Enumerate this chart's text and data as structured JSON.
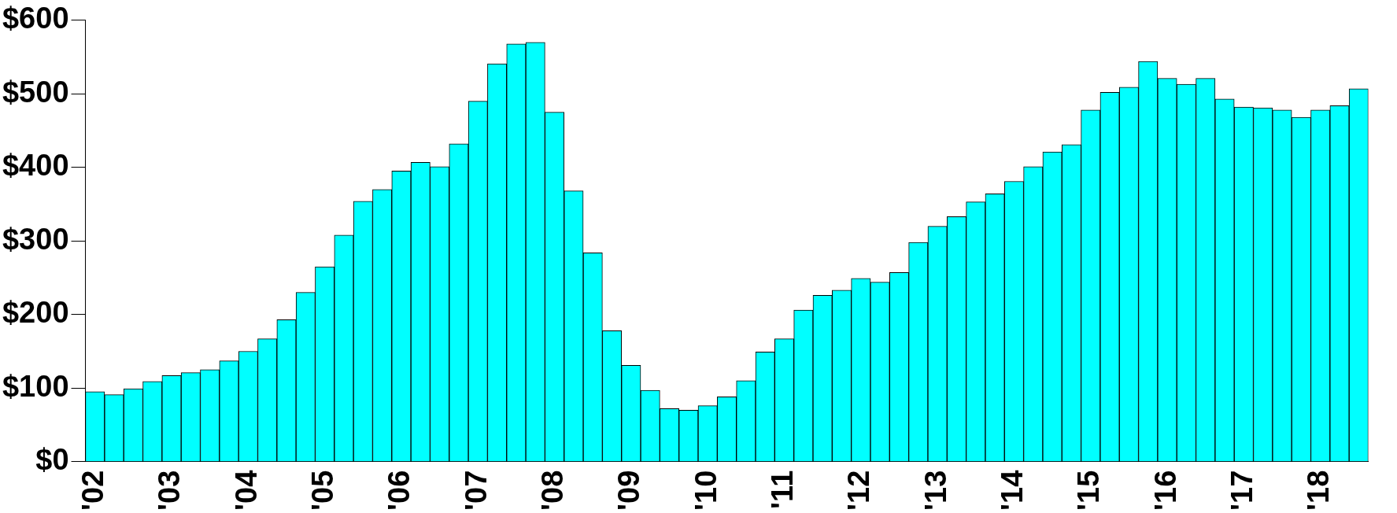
{
  "chart_data": {
    "type": "bar",
    "categories": [
      "'02",
      null,
      null,
      null,
      "'03",
      null,
      null,
      null,
      "'04",
      null,
      null,
      null,
      "'05",
      null,
      null,
      null,
      "'06",
      null,
      null,
      null,
      "'07",
      null,
      null,
      null,
      "'08",
      null,
      null,
      null,
      "'09",
      null,
      null,
      null,
      "'10",
      null,
      null,
      null,
      "'11",
      null,
      null,
      null,
      "'12",
      null,
      null,
      null,
      "'13",
      null,
      null,
      null,
      "'14",
      null,
      null,
      null,
      "'15",
      null,
      null,
      null,
      "'16",
      null,
      null,
      null,
      "'17",
      null,
      null,
      null,
      "'18",
      null,
      null
    ],
    "values": [
      95,
      91,
      99,
      109,
      117,
      121,
      125,
      137,
      150,
      167,
      193,
      230,
      265,
      308,
      354,
      370,
      395,
      407,
      401,
      432,
      490,
      541,
      568,
      570,
      475,
      368,
      284,
      178,
      131,
      97,
      72,
      70,
      76,
      88,
      110,
      149,
      167,
      206,
      226,
      233,
      249,
      244,
      257,
      298,
      320,
      333,
      353,
      364,
      381,
      401,
      421,
      431,
      478,
      502,
      509,
      544,
      521,
      513,
      521,
      493,
      482,
      481,
      478,
      468,
      478,
      484,
      507
    ],
    "color": "#00ffff",
    "ylim": [
      0,
      600
    ],
    "yticks": [
      {
        "value": 0,
        "label": "$0"
      },
      {
        "value": 100,
        "label": "$100"
      },
      {
        "value": 200,
        "label": "$200"
      },
      {
        "value": 300,
        "label": "$300"
      },
      {
        "value": 400,
        "label": "$400"
      },
      {
        "value": 500,
        "label": "$500"
      },
      {
        "value": 600,
        "label": "$600"
      }
    ],
    "grid": false,
    "legend": false
  }
}
